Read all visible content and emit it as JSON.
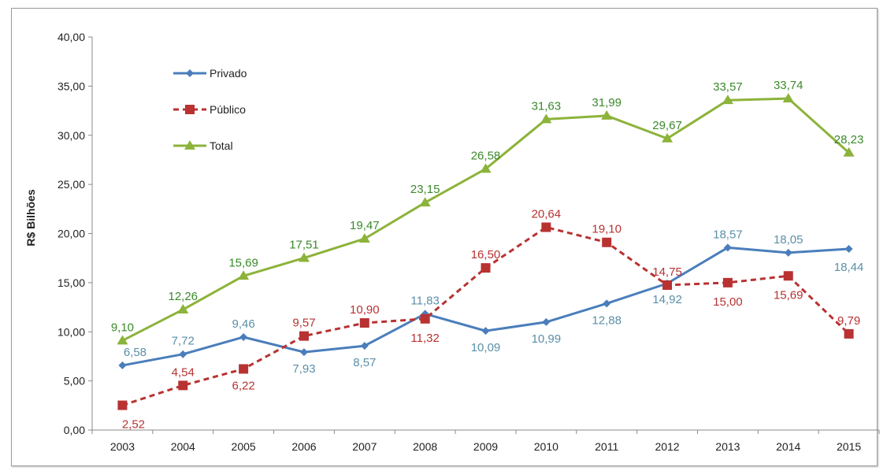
{
  "chart_data": {
    "type": "line",
    "title": "",
    "xlabel": "",
    "ylabel": "R$ Bilhões",
    "ylim": [
      0,
      40
    ],
    "yticks": [
      "0,00",
      "5,00",
      "10,00",
      "15,00",
      "20,00",
      "25,00",
      "30,00",
      "35,00",
      "40,00"
    ],
    "categories": [
      "2003",
      "2004",
      "2005",
      "2006",
      "2007",
      "2008",
      "2009",
      "2010",
      "2011",
      "2012",
      "2013",
      "2014",
      "2015"
    ],
    "legend_position": "top-left",
    "grid": false,
    "series": [
      {
        "name": "Privado",
        "color": "#4a7ebb",
        "label_color": "#5b8fa8",
        "marker": "diamond",
        "dash": false,
        "values": [
          6.58,
          7.72,
          9.46,
          7.93,
          8.57,
          11.83,
          10.09,
          10.99,
          12.88,
          14.92,
          18.57,
          18.05,
          18.44
        ],
        "labels": [
          "6,58",
          "7,72",
          "9,46",
          "7,93",
          "8,57",
          "11,83",
          "10,09",
          "10,99",
          "12,88",
          "14,92",
          "18,57",
          "18,05",
          "18,44"
        ]
      },
      {
        "name": "Público",
        "color": "#b83232",
        "label_color": "#b83232",
        "marker": "square",
        "dash": true,
        "values": [
          2.52,
          4.54,
          6.22,
          9.57,
          10.9,
          11.32,
          16.5,
          20.64,
          19.1,
          14.75,
          15.0,
          15.69,
          9.79
        ],
        "labels": [
          "2,52",
          "4,54",
          "6,22",
          "9,57",
          "10,90",
          "11,32",
          "16,50",
          "20,64",
          "19,10",
          "14,75",
          "15,00",
          "15,69",
          "9,79"
        ]
      },
      {
        "name": "Total",
        "color": "#8cb33a",
        "label_color": "#3a8a2a",
        "marker": "triangle",
        "dash": false,
        "values": [
          9.1,
          12.26,
          15.69,
          17.51,
          19.47,
          23.15,
          26.58,
          31.63,
          31.99,
          29.67,
          33.57,
          33.74,
          28.23
        ],
        "labels": [
          "9,10",
          "12,26",
          "15,69",
          "17,51",
          "19,47",
          "23,15",
          "26,58",
          "31,63",
          "31,99",
          "29,67",
          "33,57",
          "33,74",
          "28,23"
        ]
      }
    ]
  }
}
